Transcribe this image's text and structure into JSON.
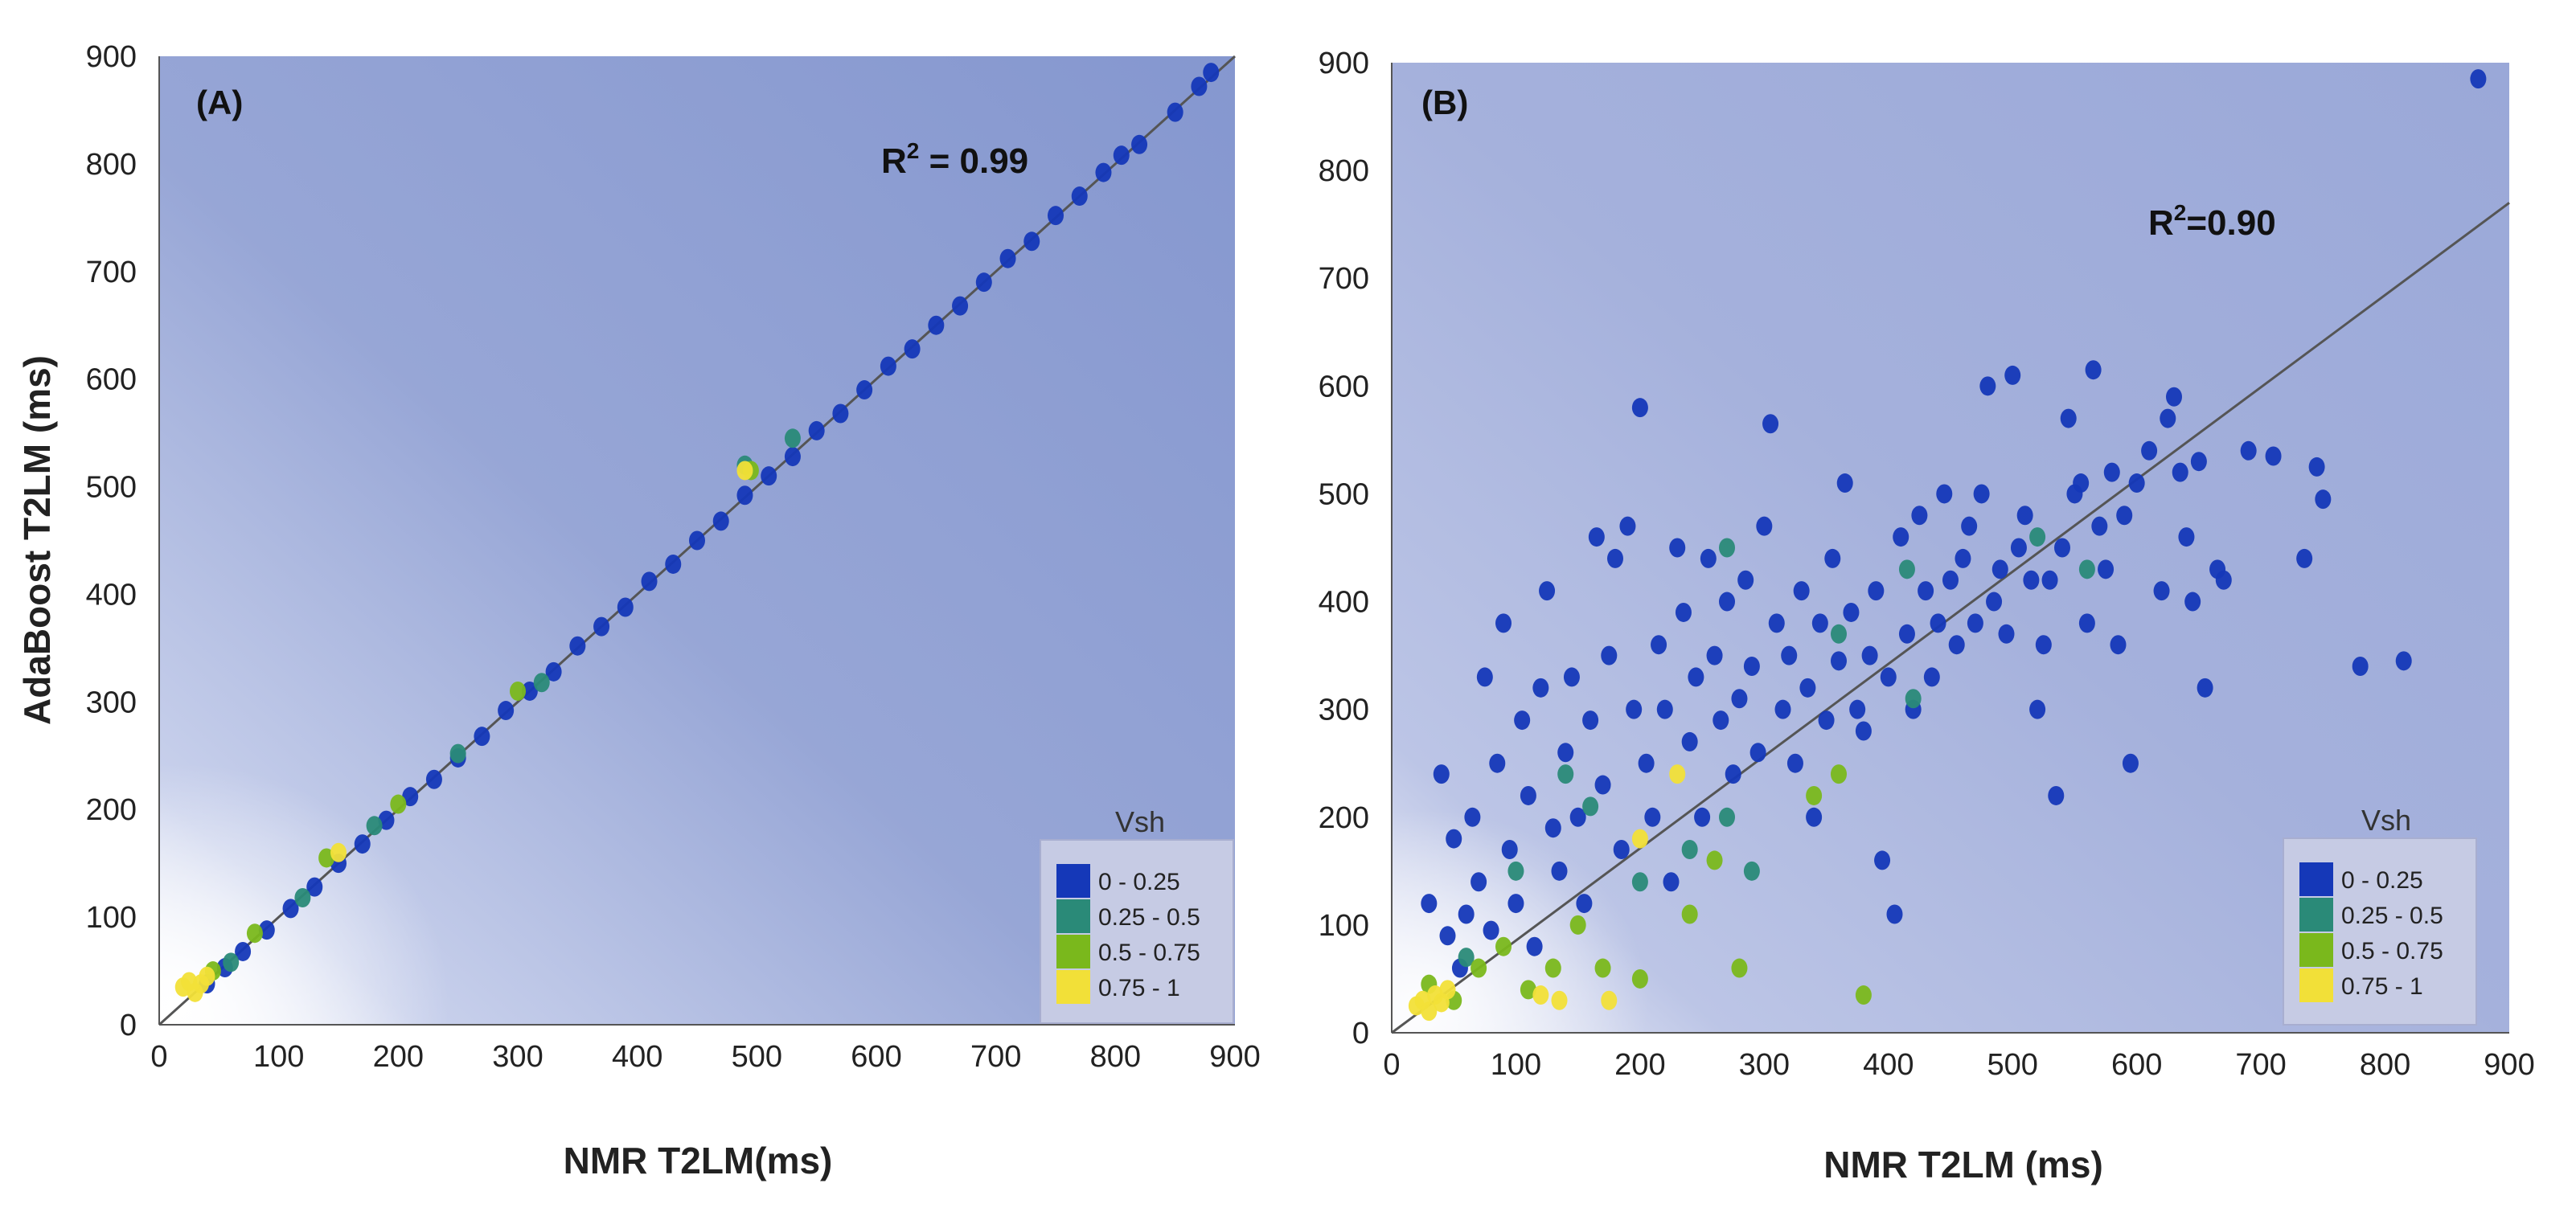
{
  "colors": {
    "vsh_0_025": "#1538b8",
    "vsh_025_05": "#2a8a78",
    "vsh_05_075": "#7ab81c",
    "vsh_075_1": "#f2e038",
    "fit_line": "#555555"
  },
  "chart_data": [
    {
      "type": "scatter",
      "panel": "(A)",
      "xlabel": "NMR T2LM(ms)",
      "ylabel": "AdaBoost T2LM (ms)",
      "xlim": [
        0,
        900
      ],
      "ylim": [
        0,
        900
      ],
      "xticks": [
        "0",
        "100",
        "200",
        "300",
        "400",
        "500",
        "600",
        "700",
        "800",
        "900"
      ],
      "yticks": [
        "0",
        "100",
        "200",
        "300",
        "400",
        "500",
        "600",
        "700",
        "800",
        "900"
      ],
      "r2_label": "R",
      "r2_sup": "2",
      "r2_value": " = 0.99",
      "legend": {
        "title": "Vsh",
        "entries": [
          "0 - 0.25",
          "0.25 - 0.5",
          "0.5 - 0.75",
          "0.75 - 1"
        ]
      },
      "fit_line": [
        [
          0,
          0
        ],
        [
          900,
          900
        ]
      ],
      "series": [
        {
          "name": "0 - 0.25",
          "points": [
            [
              40,
              38
            ],
            [
              55,
              53
            ],
            [
              70,
              68
            ],
            [
              90,
              88
            ],
            [
              110,
              108
            ],
            [
              130,
              128
            ],
            [
              150,
              150
            ],
            [
              170,
              168
            ],
            [
              190,
              190
            ],
            [
              210,
              212
            ],
            [
              230,
              228
            ],
            [
              250,
              248
            ],
            [
              270,
              268
            ],
            [
              290,
              292
            ],
            [
              310,
              310
            ],
            [
              330,
              328
            ],
            [
              350,
              352
            ],
            [
              370,
              370
            ],
            [
              390,
              388
            ],
            [
              410,
              412
            ],
            [
              430,
              428
            ],
            [
              450,
              450
            ],
            [
              470,
              468
            ],
            [
              490,
              492
            ],
            [
              510,
              510
            ],
            [
              530,
              528
            ],
            [
              550,
              552
            ],
            [
              570,
              568
            ],
            [
              590,
              590
            ],
            [
              610,
              612
            ],
            [
              630,
              628
            ],
            [
              650,
              650
            ],
            [
              670,
              668
            ],
            [
              690,
              690
            ],
            [
              710,
              712
            ],
            [
              730,
              728
            ],
            [
              750,
              752
            ],
            [
              770,
              770
            ],
            [
              790,
              792
            ],
            [
              805,
              808
            ],
            [
              820,
              818
            ],
            [
              850,
              848
            ],
            [
              870,
              872
            ],
            [
              880,
              885
            ]
          ]
        },
        {
          "name": "0.25 - 0.5",
          "points": [
            [
              60,
              58
            ],
            [
              120,
              118
            ],
            [
              180,
              185
            ],
            [
              250,
              252
            ],
            [
              320,
              318
            ],
            [
              490,
              520
            ],
            [
              530,
              545
            ]
          ]
        },
        {
          "name": "0.5 - 0.75",
          "points": [
            [
              45,
              50
            ],
            [
              80,
              85
            ],
            [
              140,
              155
            ],
            [
              200,
              205
            ],
            [
              300,
              310
            ],
            [
              495,
              515
            ]
          ]
        },
        {
          "name": "0.75 - 1",
          "points": [
            [
              20,
              35
            ],
            [
              25,
              40
            ],
            [
              30,
              30
            ],
            [
              35,
              38
            ],
            [
              40,
              45
            ],
            [
              150,
              160
            ],
            [
              490,
              515
            ]
          ]
        }
      ]
    },
    {
      "type": "scatter",
      "panel": "(B)",
      "xlabel": "NMR T2LM (ms)",
      "ylabel": "",
      "xlim": [
        0,
        900
      ],
      "ylim": [
        0,
        900
      ],
      "xticks": [
        "0",
        "100",
        "200",
        "300",
        "400",
        "500",
        "600",
        "700",
        "800",
        "900"
      ],
      "yticks": [
        "0",
        "100",
        "200",
        "300",
        "400",
        "500",
        "600",
        "700",
        "800",
        "900"
      ],
      "r2_label": "R",
      "r2_sup": "2",
      "r2_value": "=0.90",
      "legend": {
        "title": "Vsh",
        "entries": [
          "0 - 0.25",
          "0.25 - 0.5",
          "0.5 - 0.75",
          "0.75 - 1"
        ]
      },
      "fit_line": [
        [
          0,
          0
        ],
        [
          900,
          770
        ]
      ],
      "series": [
        {
          "name": "0 - 0.25",
          "points": [
            [
              30,
              120
            ],
            [
              40,
              240
            ],
            [
              45,
              90
            ],
            [
              50,
              180
            ],
            [
              55,
              60
            ],
            [
              60,
              110
            ],
            [
              65,
              200
            ],
            [
              70,
              140
            ],
            [
              75,
              330
            ],
            [
              80,
              95
            ],
            [
              85,
              250
            ],
            [
              90,
              380
            ],
            [
              95,
              170
            ],
            [
              100,
              120
            ],
            [
              105,
              290
            ],
            [
              110,
              220
            ],
            [
              115,
              80
            ],
            [
              120,
              320
            ],
            [
              125,
              410
            ],
            [
              130,
              190
            ],
            [
              135,
              150
            ],
            [
              140,
              260
            ],
            [
              145,
              330
            ],
            [
              150,
              200
            ],
            [
              155,
              120
            ],
            [
              160,
              290
            ],
            [
              165,
              460
            ],
            [
              170,
              230
            ],
            [
              175,
              350
            ],
            [
              180,
              440
            ],
            [
              185,
              170
            ],
            [
              190,
              470
            ],
            [
              195,
              300
            ],
            [
              200,
              580
            ],
            [
              205,
              250
            ],
            [
              210,
              200
            ],
            [
              215,
              360
            ],
            [
              220,
              300
            ],
            [
              225,
              140
            ],
            [
              230,
              450
            ],
            [
              235,
              390
            ],
            [
              240,
              270
            ],
            [
              245,
              330
            ],
            [
              250,
              200
            ],
            [
              255,
              440
            ],
            [
              260,
              350
            ],
            [
              265,
              290
            ],
            [
              270,
              400
            ],
            [
              275,
              240
            ],
            [
              280,
              310
            ],
            [
              285,
              420
            ],
            [
              290,
              340
            ],
            [
              295,
              260
            ],
            [
              300,
              470
            ],
            [
              305,
              565
            ],
            [
              310,
              380
            ],
            [
              315,
              300
            ],
            [
              320,
              350
            ],
            [
              325,
              250
            ],
            [
              330,
              410
            ],
            [
              335,
              320
            ],
            [
              340,
              200
            ],
            [
              345,
              380
            ],
            [
              350,
              290
            ],
            [
              355,
              440
            ],
            [
              360,
              345
            ],
            [
              365,
              510
            ],
            [
              370,
              390
            ],
            [
              375,
              300
            ],
            [
              380,
              280
            ],
            [
              385,
              350
            ],
            [
              390,
              410
            ],
            [
              395,
              160
            ],
            [
              400,
              330
            ],
            [
              405,
              110
            ],
            [
              410,
              460
            ],
            [
              415,
              370
            ],
            [
              420,
              300
            ],
            [
              425,
              480
            ],
            [
              430,
              410
            ],
            [
              435,
              330
            ],
            [
              440,
              380
            ],
            [
              445,
              500
            ],
            [
              450,
              420
            ],
            [
              455,
              360
            ],
            [
              460,
              440
            ],
            [
              465,
              470
            ],
            [
              470,
              380
            ],
            [
              475,
              500
            ],
            [
              480,
              600
            ],
            [
              485,
              400
            ],
            [
              490,
              430
            ],
            [
              495,
              370
            ],
            [
              500,
              610
            ],
            [
              505,
              450
            ],
            [
              510,
              480
            ],
            [
              515,
              420
            ],
            [
              520,
              300
            ],
            [
              525,
              360
            ],
            [
              530,
              420
            ],
            [
              535,
              220
            ],
            [
              540,
              450
            ],
            [
              545,
              570
            ],
            [
              550,
              500
            ],
            [
              555,
              510
            ],
            [
              560,
              380
            ],
            [
              565,
              615
            ],
            [
              570,
              470
            ],
            [
              575,
              430
            ],
            [
              580,
              520
            ],
            [
              585,
              360
            ],
            [
              590,
              480
            ],
            [
              595,
              250
            ],
            [
              600,
              510
            ],
            [
              610,
              540
            ],
            [
              620,
              410
            ],
            [
              625,
              570
            ],
            [
              630,
              590
            ],
            [
              635,
              520
            ],
            [
              640,
              460
            ],
            [
              645,
              400
            ],
            [
              650,
              530
            ],
            [
              655,
              320
            ],
            [
              665,
              430
            ],
            [
              670,
              420
            ],
            [
              690,
              540
            ],
            [
              710,
              535
            ],
            [
              735,
              440
            ],
            [
              745,
              525
            ],
            [
              750,
              495
            ],
            [
              780,
              340
            ],
            [
              815,
              345
            ],
            [
              875,
              885
            ]
          ]
        },
        {
          "name": "0.25 - 0.5",
          "points": [
            [
              60,
              70
            ],
            [
              100,
              150
            ],
            [
              140,
              240
            ],
            [
              160,
              210
            ],
            [
              200,
              140
            ],
            [
              240,
              170
            ],
            [
              270,
              200
            ],
            [
              270,
              450
            ],
            [
              290,
              150
            ],
            [
              360,
              370
            ],
            [
              415,
              430
            ],
            [
              420,
              310
            ],
            [
              520,
              460
            ],
            [
              560,
              430
            ]
          ]
        },
        {
          "name": "0.5 - 0.75",
          "points": [
            [
              30,
              45
            ],
            [
              50,
              30
            ],
            [
              70,
              60
            ],
            [
              90,
              80
            ],
            [
              110,
              40
            ],
            [
              130,
              60
            ],
            [
              150,
              100
            ],
            [
              170,
              60
            ],
            [
              200,
              50
            ],
            [
              240,
              110
            ],
            [
              260,
              160
            ],
            [
              280,
              60
            ],
            [
              340,
              220
            ],
            [
              360,
              240
            ],
            [
              380,
              35
            ]
          ]
        },
        {
          "name": "0.75 - 1",
          "points": [
            [
              20,
              25
            ],
            [
              25,
              30
            ],
            [
              30,
              20
            ],
            [
              35,
              35
            ],
            [
              40,
              28
            ],
            [
              45,
              40
            ],
            [
              120,
              35
            ],
            [
              135,
              30
            ],
            [
              175,
              30
            ],
            [
              200,
              180
            ],
            [
              230,
              240
            ]
          ]
        }
      ]
    }
  ]
}
